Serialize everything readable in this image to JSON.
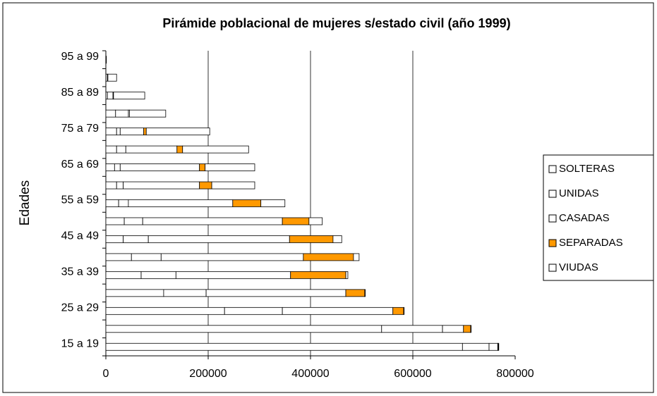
{
  "chart_data": {
    "type": "stacked-barh",
    "title": "Pirámide poblacional de mujeres s/estado civil (año 1999)",
    "y_label": "Edades",
    "categories": [
      "95 a 99",
      null,
      "85 a 89",
      null,
      "75 a 79",
      null,
      "65 a 69",
      null,
      "55 a 59",
      null,
      "45 a 49",
      null,
      "35 a 39",
      null,
      "25 a 29",
      null,
      "15 a 19"
    ],
    "series": [
      {
        "name": "SOLTERAS",
        "color": "#ffffff",
        "values": [
          0,
          3000,
          3000,
          19000,
          21000,
          21000,
          17000,
          21000,
          25000,
          36000,
          34000,
          50000,
          69000,
          113000,
          232000,
          539000,
          697000
        ]
      },
      {
        "name": "UNIDAS",
        "color": "#ffffff",
        "values": [
          0,
          1000,
          11000,
          25000,
          7000,
          18000,
          11000,
          13000,
          19000,
          36000,
          49000,
          58000,
          68000,
          83000,
          113000,
          119000,
          52000
        ]
      },
      {
        "name": "CASADAS",
        "color": "#ffffff",
        "values": [
          0,
          0,
          1000,
          2000,
          46000,
          100000,
          155000,
          149000,
          204000,
          273000,
          276000,
          278000,
          224000,
          273000,
          216000,
          41000,
          17000
        ]
      },
      {
        "name": "SEPARADAS",
        "color": "#ff9900",
        "values": [
          0,
          0,
          0,
          0,
          5000,
          11000,
          11000,
          24000,
          55000,
          52000,
          85000,
          98000,
          108000,
          37000,
          21000,
          14000,
          1000
        ]
      },
      {
        "name": "VIUDAS",
        "color": "#ffffff",
        "values": [
          1000,
          17000,
          61000,
          71000,
          124000,
          129000,
          97000,
          84000,
          47000,
          26000,
          17000,
          11000,
          4000,
          1000,
          1000,
          1000,
          1000
        ]
      }
    ],
    "xlim": [
      0,
      800000
    ],
    "xticks": [
      0,
      200000,
      400000,
      600000,
      800000
    ],
    "grid": true,
    "legend": "right"
  }
}
